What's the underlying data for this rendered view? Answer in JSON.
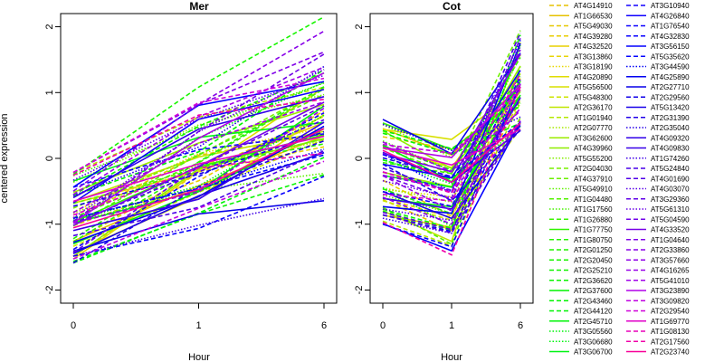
{
  "chart_data": [
    {
      "type": "line",
      "title": "Mer",
      "xlabel": "Hour",
      "ylabel": "centered expression",
      "x": [
        "0",
        "1",
        "6"
      ],
      "ylim": [
        -2.2,
        2.2
      ],
      "yticks": [
        -2,
        -1,
        0,
        1,
        2
      ],
      "grid": false
    },
    {
      "type": "line",
      "title": "Cot",
      "xlabel": "Hour",
      "ylabel": "",
      "x": [
        "0",
        "1",
        "6"
      ],
      "ylim": [
        -2.2,
        2.2
      ],
      "yticks": [
        -2,
        -1,
        0,
        1,
        2
      ],
      "grid": false
    }
  ],
  "legend": {
    "placement": "right",
    "entries": [
      {
        "name": "AT4G14910",
        "color": "#e6c200",
        "style": "dashed"
      },
      {
        "name": "AT1G66530",
        "color": "#e6c200",
        "style": "solid"
      },
      {
        "name": "AT5G49030",
        "color": "#e6c800",
        "style": "dashed"
      },
      {
        "name": "AT4G39280",
        "color": "#e8cc00",
        "style": "dashed"
      },
      {
        "name": "AT4G32520",
        "color": "#e8d000",
        "style": "solid"
      },
      {
        "name": "AT3G13860",
        "color": "#e8d400",
        "style": "dashed"
      },
      {
        "name": "AT3G18190",
        "color": "#e8d800",
        "style": "dotted"
      },
      {
        "name": "AT4G20890",
        "color": "#e0dc00",
        "style": "solid"
      },
      {
        "name": "AT5G56500",
        "color": "#d8e000",
        "style": "solid"
      },
      {
        "name": "AT5G48300",
        "color": "#cce400",
        "style": "dashed"
      },
      {
        "name": "AT2G36170",
        "color": "#c0e600",
        "style": "solid"
      },
      {
        "name": "AT1G01940",
        "color": "#b4e800",
        "style": "dashed"
      },
      {
        "name": "AT2G07770",
        "color": "#a8ea00",
        "style": "dotted"
      },
      {
        "name": "AT3G62600",
        "color": "#9cec00",
        "style": "solid"
      },
      {
        "name": "AT4G39960",
        "color": "#90ee00",
        "style": "solid"
      },
      {
        "name": "AT5G55200",
        "color": "#84ee00",
        "style": "dotted"
      },
      {
        "name": "AT2G04030",
        "color": "#78f000",
        "style": "dashed"
      },
      {
        "name": "AT4G37910",
        "color": "#6cf000",
        "style": "dashed"
      },
      {
        "name": "AT5G49910",
        "color": "#60f200",
        "style": "dotted"
      },
      {
        "name": "AT1G04480",
        "color": "#54f200",
        "style": "dashed"
      },
      {
        "name": "AT1G17560",
        "color": "#48f200",
        "style": "dotted"
      },
      {
        "name": "AT1G26880",
        "color": "#3cf400",
        "style": "dashed"
      },
      {
        "name": "AT1G77750",
        "color": "#30f400",
        "style": "solid"
      },
      {
        "name": "AT1G80750",
        "color": "#28f400",
        "style": "dashed"
      },
      {
        "name": "AT2G01250",
        "color": "#20f400",
        "style": "dashed"
      },
      {
        "name": "AT2G20450",
        "color": "#18f400",
        "style": "dashed"
      },
      {
        "name": "AT2G25210",
        "color": "#10f400",
        "style": "dashed"
      },
      {
        "name": "AT2G36620",
        "color": "#08f400",
        "style": "dashed"
      },
      {
        "name": "AT2G37600",
        "color": "#00f400",
        "style": "solid"
      },
      {
        "name": "AT2G43460",
        "color": "#00f400",
        "style": "dashed"
      },
      {
        "name": "AT2G44120",
        "color": "#00f404",
        "style": "dashed"
      },
      {
        "name": "AT2G45710",
        "color": "#00f408",
        "style": "solid"
      },
      {
        "name": "AT3G05560",
        "color": "#00f40c",
        "style": "dotted"
      },
      {
        "name": "AT3G06680",
        "color": "#00f410",
        "style": "dotted"
      },
      {
        "name": "AT3G06700",
        "color": "#00f414",
        "style": "solid"
      },
      {
        "name": "AT3G10940",
        "color": "#1400ff",
        "style": "dashed"
      },
      {
        "name": "AT4G26840",
        "color": "#1000ff",
        "style": "solid"
      },
      {
        "name": "AT1G76540",
        "color": "#0c00ff",
        "style": "dashed"
      },
      {
        "name": "AT4G32830",
        "color": "#0800ff",
        "style": "dashed"
      },
      {
        "name": "AT3G56150",
        "color": "#0400ff",
        "style": "solid"
      },
      {
        "name": "AT5G35620",
        "color": "#0000ff",
        "style": "dashed"
      },
      {
        "name": "AT3G44590",
        "color": "#0000f8",
        "style": "dotted"
      },
      {
        "name": "AT4G25890",
        "color": "#0000f0",
        "style": "solid"
      },
      {
        "name": "AT2G27710",
        "color": "#0800e8",
        "style": "solid"
      },
      {
        "name": "AT2G29560",
        "color": "#1000e8",
        "style": "dashed"
      },
      {
        "name": "AT5G13420",
        "color": "#1800e8",
        "style": "solid"
      },
      {
        "name": "AT2G31390",
        "color": "#2000e8",
        "style": "dashed"
      },
      {
        "name": "AT2G35040",
        "color": "#2800e8",
        "style": "dotted"
      },
      {
        "name": "AT4G09320",
        "color": "#3000e8",
        "style": "solid"
      },
      {
        "name": "AT4G09830",
        "color": "#3800e8",
        "style": "solid"
      },
      {
        "name": "AT1G74260",
        "color": "#4000e8",
        "style": "dotted"
      },
      {
        "name": "AT5G24840",
        "color": "#4800e8",
        "style": "dashed"
      },
      {
        "name": "AT4G01690",
        "color": "#5000e8",
        "style": "dashed"
      },
      {
        "name": "AT4G03070",
        "color": "#5800e8",
        "style": "dotted"
      },
      {
        "name": "AT3G29360",
        "color": "#6000e8",
        "style": "dashed"
      },
      {
        "name": "AT5G61310",
        "color": "#6800e8",
        "style": "dotted"
      },
      {
        "name": "AT5G04590",
        "color": "#7000e8",
        "style": "dashed"
      },
      {
        "name": "AT4G33520",
        "color": "#7800e8",
        "style": "solid"
      },
      {
        "name": "AT1G04640",
        "color": "#8000e8",
        "style": "dashed"
      },
      {
        "name": "AT2G33860",
        "color": "#8800e8",
        "style": "dashed"
      },
      {
        "name": "AT3G57660",
        "color": "#9000e8",
        "style": "dashed"
      },
      {
        "name": "AT4G16265",
        "color": "#9800e8",
        "style": "dashed"
      },
      {
        "name": "AT5G41010",
        "color": "#a000e8",
        "style": "dashed"
      },
      {
        "name": "AT3G23890",
        "color": "#b000e8",
        "style": "solid"
      },
      {
        "name": "AT3G09820",
        "color": "#c000e0",
        "style": "dashed"
      },
      {
        "name": "AT2G29540",
        "color": "#d000d8",
        "style": "dashed"
      },
      {
        "name": "AT1G69770",
        "color": "#e000c8",
        "style": "solid"
      },
      {
        "name": "AT1G08130",
        "color": "#e800b8",
        "style": "dashed"
      },
      {
        "name": "AT2G17560",
        "color": "#f000a8",
        "style": "dashed"
      },
      {
        "name": "AT2G23740",
        "color": "#f80098",
        "style": "solid"
      }
    ]
  }
}
